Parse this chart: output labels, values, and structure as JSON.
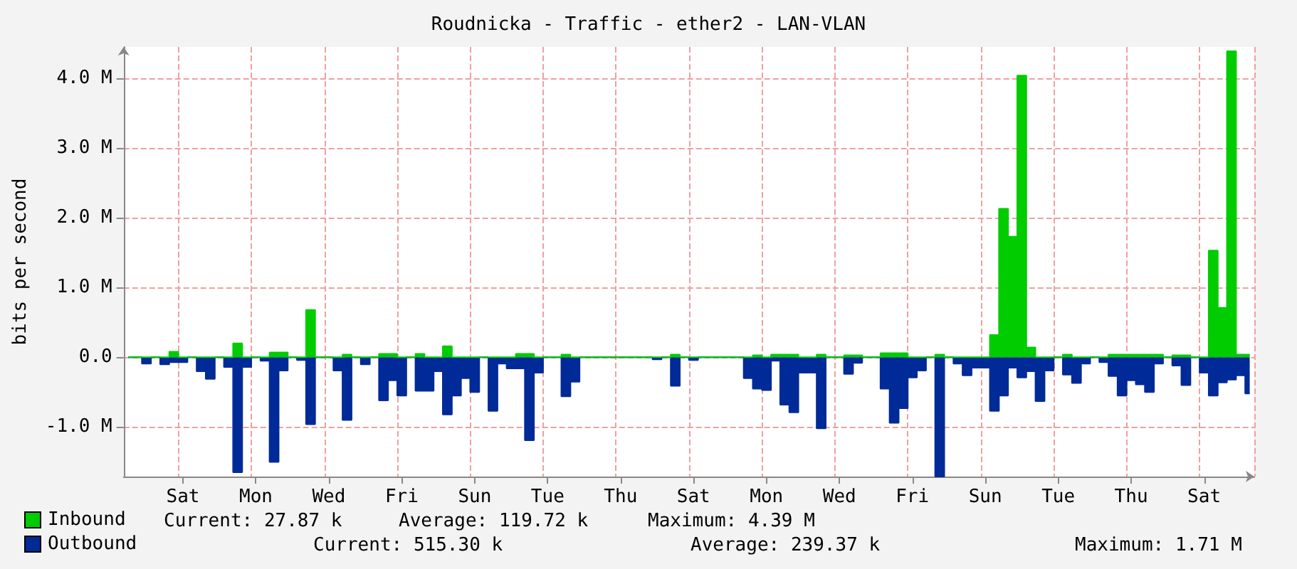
{
  "chart_data": {
    "type": "area",
    "title": "Roudnicka - Traffic - ether2 - LAN-VLAN",
    "ylabel": "bits per second",
    "categories": [
      null,
      null,
      null,
      null,
      null,
      null,
      "Sat",
      null,
      null,
      null,
      null,
      null,
      null,
      null,
      "Mon",
      null,
      null,
      null,
      null,
      null,
      null,
      null,
      "Wed",
      null,
      null,
      null,
      null,
      null,
      null,
      null,
      "Fri",
      null,
      null,
      null,
      null,
      null,
      null,
      null,
      "Sun",
      null,
      null,
      null,
      null,
      null,
      null,
      null,
      "Tue",
      null,
      null,
      null,
      null,
      null,
      null,
      null,
      "Thu",
      null,
      null,
      null,
      null,
      null,
      null,
      null,
      "Sat",
      null,
      null,
      null,
      null,
      null,
      null,
      null,
      "Mon",
      null,
      null,
      null,
      null,
      null,
      null,
      null,
      "Wed",
      null,
      null,
      null,
      null,
      null,
      null,
      null,
      "Fri",
      null,
      null,
      null,
      null,
      null,
      null,
      null,
      "Sun",
      null,
      null,
      null,
      null,
      null,
      null,
      null,
      "Tue",
      null,
      null,
      null,
      null,
      null,
      null,
      null,
      "Thu",
      null,
      null,
      null,
      null,
      null,
      null,
      null,
      "Sat",
      null,
      null,
      null,
      null,
      null
    ],
    "ylim": [
      -1.71,
      4.45
    ],
    "yticks": [
      {
        "value": -1,
        "label": "-1.0 M"
      },
      {
        "value": 0,
        "label": "0.0"
      },
      {
        "value": 1,
        "label": "1.0 M"
      },
      {
        "value": 2,
        "label": "2.0 M"
      },
      {
        "value": 3,
        "label": "3.0 M"
      },
      {
        "value": 4,
        "label": "4.0 M"
      }
    ],
    "grid": true,
    "legend": "bottom left",
    "series": [
      {
        "name": "Outbound",
        "color": "#002a97",
        "values": [
          0,
          0,
          -0.09,
          0,
          -0.1,
          -0.07,
          -0.07,
          0,
          -0.2,
          -0.31,
          0,
          -0.14,
          -1.65,
          -0.14,
          0,
          -0.05,
          -1.5,
          -0.19,
          0,
          -0.04,
          -0.96,
          0,
          0,
          -0.19,
          -0.9,
          0,
          -0.1,
          0,
          -0.62,
          -0.33,
          -0.55,
          0,
          -0.48,
          -0.48,
          -0.2,
          -0.82,
          -0.55,
          -0.3,
          -0.5,
          0,
          -0.77,
          -0.09,
          -0.16,
          -0.16,
          -1.19,
          -0.22,
          0,
          0,
          -0.56,
          -0.35,
          0,
          0,
          0,
          0,
          0,
          0,
          0,
          0,
          -0.03,
          0,
          -0.41,
          0,
          -0.04,
          0,
          0,
          0,
          0,
          0,
          -0.3,
          -0.45,
          -0.47,
          -0.05,
          -0.68,
          -0.79,
          -0.22,
          -0.22,
          -1.02,
          0,
          0,
          -0.24,
          -0.08,
          0,
          0,
          -0.45,
          -0.94,
          -0.73,
          -0.29,
          -0.19,
          0,
          -1.71,
          0,
          -0.09,
          -0.26,
          -0.15,
          -0.15,
          -0.77,
          -0.55,
          -0.15,
          -0.29,
          -0.2,
          -0.63,
          -0.19,
          0,
          -0.25,
          -0.37,
          -0.09,
          0,
          -0.07,
          -0.27,
          -0.55,
          -0.33,
          -0.39,
          -0.5,
          -0.09,
          0,
          -0.12,
          -0.4,
          0,
          -0.22,
          -0.55,
          -0.36,
          -0.32,
          -0.26,
          -0.52
        ]
      },
      {
        "name": "Inbound",
        "color": "#00cc00",
        "values": [
          0,
          0,
          0,
          0,
          0,
          0.08,
          0,
          0,
          0,
          0,
          0,
          0,
          0.2,
          0,
          0,
          0,
          0.07,
          0.07,
          0,
          0,
          0.68,
          0,
          0,
          0,
          0.04,
          0,
          0,
          0,
          0.05,
          0.05,
          0,
          0,
          0.05,
          0,
          0,
          0.16,
          0,
          0,
          0,
          0,
          0,
          0,
          0,
          0.05,
          0.05,
          0,
          0,
          0,
          0.04,
          0,
          0,
          0,
          0,
          0,
          0,
          0,
          0,
          0,
          0,
          0,
          0.04,
          0,
          0,
          0,
          0,
          0,
          0,
          0,
          0,
          0.03,
          0,
          0.04,
          0.04,
          0.04,
          0,
          0,
          0.04,
          0,
          0,
          0.03,
          0.03,
          0,
          0,
          0.06,
          0.06,
          0.06,
          0,
          0,
          0,
          0.04,
          0,
          0,
          0,
          0,
          0,
          0.32,
          2.13,
          1.73,
          4.04,
          0.14,
          0,
          0,
          0,
          0.04,
          0,
          0,
          0,
          0,
          0.04,
          0.04,
          0.04,
          0.04,
          0.04,
          0.04,
          0,
          0.03,
          0.03,
          0,
          0,
          1.53,
          0.71,
          4.39,
          0.04,
          0.04
        ]
      }
    ],
    "annotations": [
      "Current: 27.87 k",
      "Average: 119.72 k",
      "Maximum: 4.39 M",
      "Current: 515.30 k",
      "Average: 239.37 k",
      "Maximum: 1.71 M"
    ]
  }
}
